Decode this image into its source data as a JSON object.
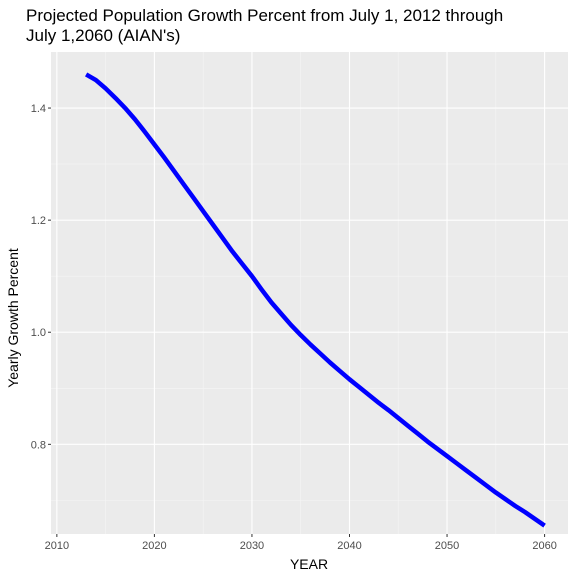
{
  "chart_data": {
    "type": "line",
    "title": "Projected Population Growth Percent from July 1, 2012 through\n July 1,2060 (AIAN's)",
    "xlabel": "YEAR",
    "ylabel": "Yearly Growth Percent",
    "xlim": [
      2009.4,
      2062.4
    ],
    "ylim": [
      0.64,
      1.5
    ],
    "x_ticks": [
      2010,
      2020,
      2030,
      2040,
      2050,
      2060
    ],
    "y_ticks": [
      0.8,
      1.0,
      1.2,
      1.4
    ],
    "y_tick_labels": [
      "0.8",
      "1.0",
      "1.2",
      "1.4"
    ],
    "grid": true,
    "legend": "none",
    "series": [
      {
        "color": "#0000ff",
        "x": [
          2013,
          2014,
          2015,
          2016,
          2017,
          2018,
          2019,
          2020,
          2021,
          2022,
          2023,
          2024,
          2025,
          2026,
          2027,
          2028,
          2029,
          2030,
          2031,
          2032,
          2033,
          2034,
          2035,
          2036,
          2037,
          2038,
          2039,
          2040,
          2041,
          2042,
          2043,
          2044,
          2045,
          2046,
          2047,
          2048,
          2049,
          2050,
          2051,
          2052,
          2053,
          2054,
          2055,
          2056,
          2057,
          2058,
          2059,
          2060
        ],
        "y": [
          1.46,
          1.45,
          1.435,
          1.418,
          1.4,
          1.38,
          1.358,
          1.335,
          1.312,
          1.288,
          1.264,
          1.24,
          1.216,
          1.192,
          1.168,
          1.144,
          1.122,
          1.1,
          1.076,
          1.053,
          1.033,
          1.013,
          0.995,
          0.978,
          0.962,
          0.946,
          0.931,
          0.916,
          0.902,
          0.888,
          0.874,
          0.861,
          0.847,
          0.833,
          0.819,
          0.805,
          0.792,
          0.779,
          0.766,
          0.753,
          0.74,
          0.727,
          0.714,
          0.702,
          0.69,
          0.679,
          0.667,
          0.655
        ]
      }
    ]
  }
}
